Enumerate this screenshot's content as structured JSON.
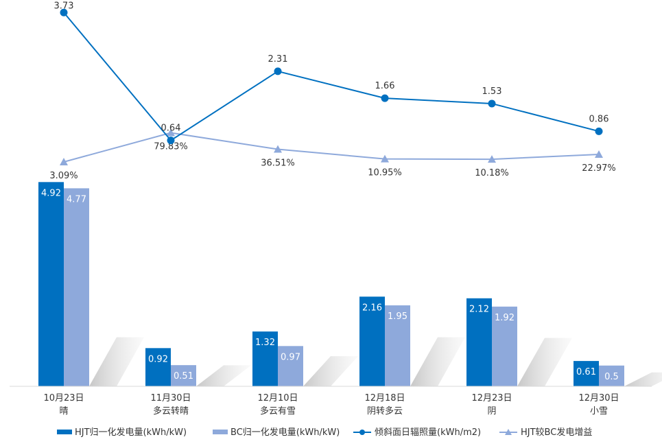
{
  "chart_data": {
    "type": "bar",
    "title": "",
    "categories": [
      "10月23日",
      "11月30日",
      "12月10日",
      "12月18日",
      "12月23日",
      "12月30日"
    ],
    "weather": [
      "晴",
      "多云转晴",
      "多云有雪",
      "阴转多云",
      "阴",
      "小雪"
    ],
    "series": [
      {
        "name": "HJT归一化发电量(kWh/kW)",
        "type": "bar",
        "color": "#0070C0",
        "values": [
          4.92,
          0.92,
          1.32,
          2.16,
          2.12,
          0.61
        ]
      },
      {
        "name": "BC归一化发电量(kWh/kW)",
        "type": "bar",
        "color": "#8EA9DB",
        "values": [
          4.77,
          0.51,
          0.97,
          1.95,
          1.92,
          0.5
        ]
      },
      {
        "name": "倾斜面日辐照量(kWh/m2)",
        "type": "line",
        "marker": "circle",
        "color": "#0070C0",
        "values": [
          3.73,
          0.64,
          2.31,
          1.66,
          1.53,
          0.86
        ]
      },
      {
        "name": "HJT较BC发电增益",
        "type": "line",
        "marker": "triangle",
        "color": "#8EA9DB",
        "values": [
          3.09,
          79.83,
          36.51,
          10.95,
          10.18,
          22.97
        ],
        "labels": [
          "3.09%",
          "79.83%",
          "36.51%",
          "10.95%",
          "10.18%",
          "22.97%"
        ]
      }
    ],
    "legend_position": "bottom",
    "grid": false
  }
}
